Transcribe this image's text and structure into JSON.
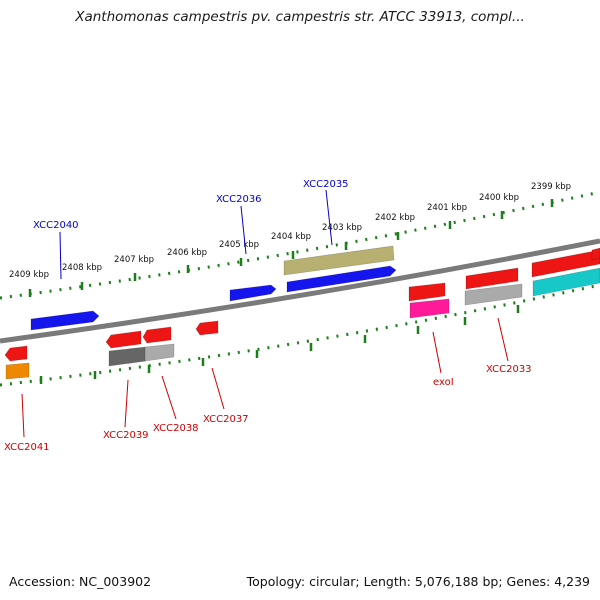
{
  "title": "Xanthomonas campestris pv. campestris str. ATCC 33913, compl...",
  "footer": {
    "accession": "Accession: NC_003902",
    "summary": "Topology: circular; Length: 5,076,188 bp; Genes: 4,239"
  },
  "colors": {
    "backbone": "#7a7a7a",
    "scale_dots": "#1a7f1a",
    "forward_label": "#0000cc",
    "reverse_label": "#cc0000"
  },
  "scale_labels": [
    "2409 kbp",
    "2408 kbp",
    "2407 kbp",
    "2406 kbp",
    "2405 kbp",
    "2404 kbp",
    "2403 kbp",
    "2402 kbp",
    "2401 kbp",
    "2400 kbp",
    "2399 kbp"
  ],
  "forward_genes": [
    {
      "color": "#1515ee",
      "label": ""
    },
    {
      "color": "#1515ee",
      "label": ""
    },
    {
      "color": "#1515ee",
      "label": ""
    },
    {
      "color": "#b8b070",
      "label": ""
    },
    {
      "color": "#ee1515",
      "label": ""
    },
    {
      "color": "#aaaaaa",
      "label": ""
    },
    {
      "color": "#ee1515",
      "label": ""
    },
    {
      "color": "#ee1515",
      "label": ""
    },
    {
      "color": "#ff1a9a",
      "label": ""
    },
    {
      "color": "#ee1515",
      "label": ""
    },
    {
      "color": "#aaaaaa",
      "label": ""
    },
    {
      "color": "#ee1515",
      "label": ""
    },
    {
      "color": "#18c8c8",
      "label": ""
    }
  ],
  "reverse_genes": [
    {
      "color": "#ee1515"
    },
    {
      "color": "#ee8800"
    },
    {
      "color": "#ee1515"
    },
    {
      "color": "#666666"
    },
    {
      "color": "#ee1515"
    },
    {
      "color": "#aaaaaa"
    },
    {
      "color": "#ee1515"
    }
  ],
  "gene_labels_forward": [
    "XCC2040",
    "XCC2036",
    "XCC2035"
  ],
  "gene_labels_reverse": [
    "XCC2041",
    "XCC2039",
    "XCC2038",
    "XCC2037",
    "exoI",
    "XCC2033"
  ]
}
